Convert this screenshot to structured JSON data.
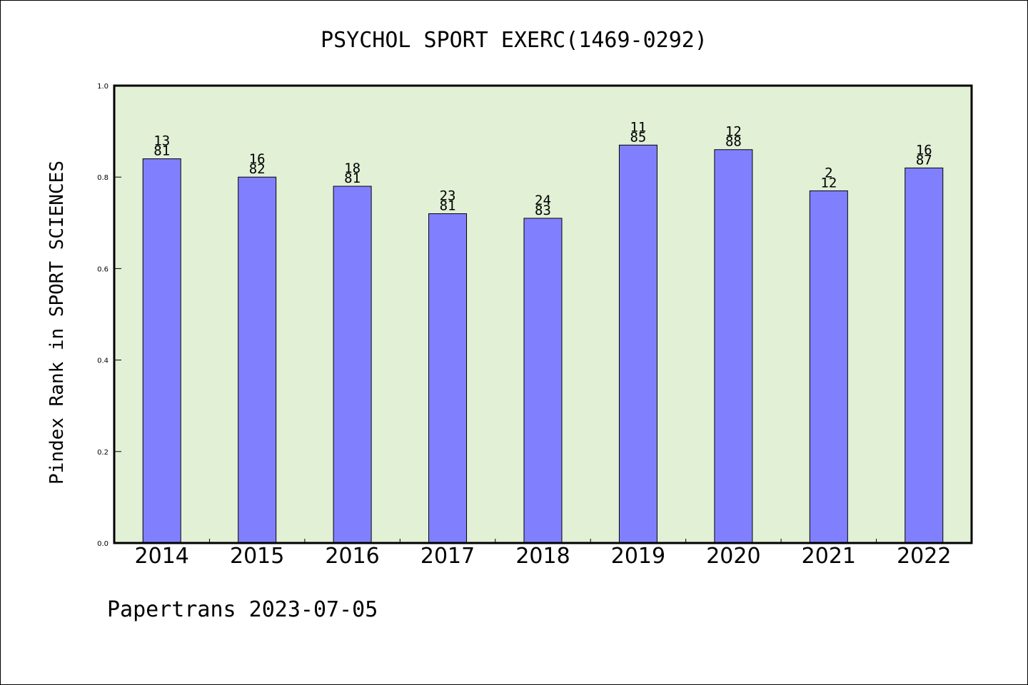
{
  "chart_data": {
    "type": "bar",
    "title": "PSYCHOL SPORT EXERC(1469-0292)",
    "ylabel": "Pindex Rank in SPORT SCIENCES",
    "xlabel": "",
    "ylim": [
      0,
      1.0
    ],
    "yticks": [
      "0.0",
      "0.2",
      "0.4",
      "0.6",
      "0.8",
      "1.0"
    ],
    "categories": [
      "2014",
      "2015",
      "2016",
      "2017",
      "2018",
      "2019",
      "2020",
      "2021",
      "2022"
    ],
    "values": [
      0.84,
      0.8,
      0.78,
      0.72,
      0.71,
      0.87,
      0.86,
      0.77,
      0.82
    ],
    "labels_top": [
      "13",
      "16",
      "18",
      "23",
      "24",
      "11",
      "12",
      "2",
      "16"
    ],
    "labels_bottom": [
      "81",
      "82",
      "81",
      "81",
      "83",
      "85",
      "88",
      "12",
      "87"
    ],
    "grid": false,
    "colors": {
      "bar_fill": "#8080ff",
      "plot_background": "#e2f0d6",
      "axis": "#000000"
    }
  },
  "footer": "Papertrans 2023-07-05"
}
